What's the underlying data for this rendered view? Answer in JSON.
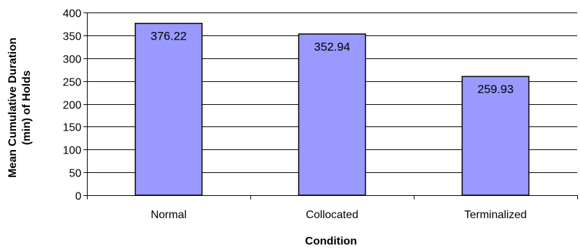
{
  "chart_data": {
    "type": "bar",
    "title": "",
    "xlabel": "Condition",
    "ylabel_lines": [
      "Mean Cumulative Duration",
      "(min) of Holds"
    ],
    "categories": [
      "Normal",
      "Collocated",
      "Terminalized"
    ],
    "values": [
      376.22,
      352.94,
      259.93
    ],
    "value_labels": [
      "376.22",
      "352.94",
      "259.93"
    ],
    "ylim": [
      0,
      400
    ],
    "yticks": [
      0,
      50,
      100,
      150,
      200,
      250,
      300,
      350,
      400
    ],
    "grid": true,
    "bar_color": "#9999ff",
    "legend": "none"
  }
}
